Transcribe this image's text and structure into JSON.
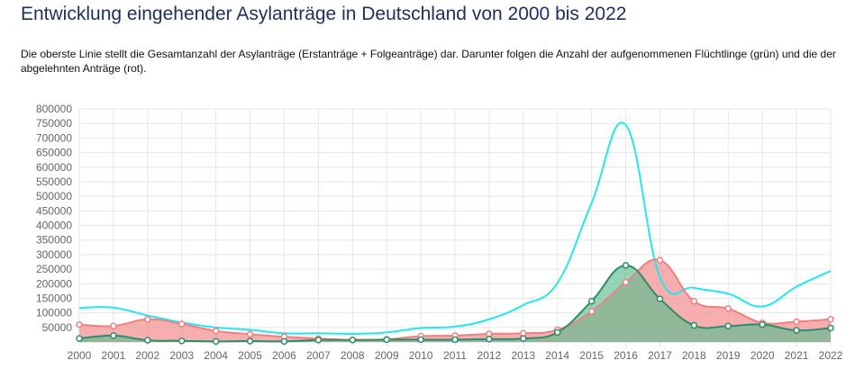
{
  "page": {
    "title": "Entwicklung eingehender Asylanträge in Deutschland von 2000 bis 2022",
    "description": "Die oberste Linie stellt die Gesamtanzahl der Asylanträge (Erstanträge + Folgeanträge) dar. Darunter folgen die Anzahl der aufgenommenen Flüchtlinge (grün) und die der abgelehnten Anträge (rot)."
  },
  "chart_data": {
    "type": "area",
    "categories": [
      "2000",
      "2001",
      "2002",
      "2003",
      "2004",
      "2005",
      "2006",
      "2007",
      "2008",
      "2009",
      "2010",
      "2011",
      "2012",
      "2013",
      "2014",
      "2015",
      "2016",
      "2017",
      "2018",
      "2019",
      "2020",
      "2021",
      "2022"
    ],
    "series": [
      {
        "name": "",
        "kind": "line",
        "color": "#22e8ee",
        "values": [
          117000,
          118000,
          91000,
          67000,
          50000,
          42000,
          30000,
          30000,
          28000,
          33000,
          48000,
          53000,
          78000,
          127000,
          203000,
          477000,
          745000,
          223000,
          186000,
          166000,
          122000,
          190000,
          244000
        ]
      },
      {
        "name": "",
        "kind": "area",
        "color": "#f08080",
        "fill": "#f59a9a",
        "values": [
          60000,
          55000,
          78000,
          62000,
          38000,
          27000,
          18000,
          12000,
          7000,
          9000,
          20000,
          22000,
          28000,
          30000,
          42000,
          105000,
          205000,
          281000,
          140000,
          115000,
          66000,
          70000,
          78000
        ]
      },
      {
        "name": "",
        "kind": "area",
        "color": "#2e8b6c",
        "fill": "#5bbf8e",
        "values": [
          12000,
          22000,
          6000,
          4000,
          2000,
          3000,
          2000,
          7000,
          7000,
          8000,
          8000,
          8000,
          10000,
          12000,
          33000,
          140000,
          263000,
          148000,
          57000,
          55000,
          60000,
          40000,
          48000
        ]
      }
    ],
    "y_ticks": [
      50000,
      100000,
      150000,
      200000,
      250000,
      300000,
      350000,
      400000,
      450000,
      500000,
      550000,
      600000,
      650000,
      700000,
      750000,
      800000
    ],
    "ylim": [
      0,
      800000
    ],
    "grid": true,
    "legend": "none"
  }
}
